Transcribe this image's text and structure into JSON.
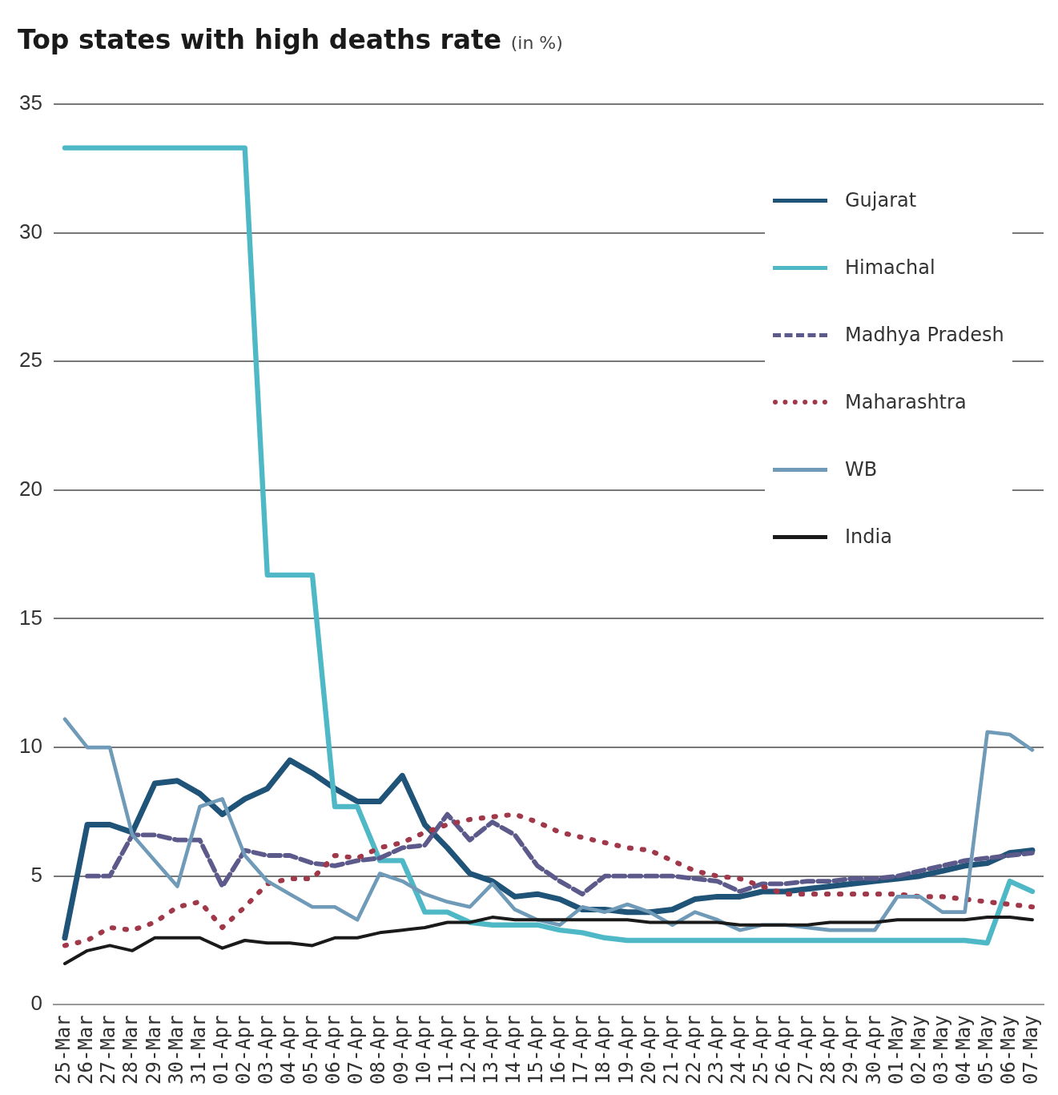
{
  "chart_data": {
    "type": "line",
    "title": "Top states with high deaths rate",
    "subtitle": "(in %)",
    "categories": [
      "25-Mar",
      "26-Mar",
      "27-Mar",
      "28-Mar",
      "29-Mar",
      "30-Mar",
      "31-Mar",
      "01-Apr",
      "02-Apr",
      "03-Apr",
      "04-Apr",
      "05-Apr",
      "06-Apr",
      "07-Apr",
      "08-Apr",
      "09-Apr",
      "10-Apr",
      "11-Apr",
      "12-Apr",
      "13-Apr",
      "14-Apr",
      "15-Apr",
      "16-Apr",
      "17-Apr",
      "18-Apr",
      "19-Apr",
      "20-Apr",
      "21-Apr",
      "22-Apr",
      "23-Apr",
      "24-Apr",
      "25-Apr",
      "26-Apr",
      "27-Apr",
      "28-Apr",
      "29-Apr",
      "30-Apr",
      "01-May",
      "02-May",
      "03-May",
      "04-May",
      "05-May",
      "06-May",
      "07-May"
    ],
    "series": [
      {
        "name": "Gujarat",
        "color": "#1f5478",
        "line_style": "solid",
        "values": [
          2.6,
          7.0,
          7.0,
          6.7,
          8.6,
          8.7,
          8.2,
          7.4,
          8.0,
          8.4,
          9.5,
          9.0,
          8.4,
          7.9,
          7.9,
          8.9,
          7.0,
          6.1,
          5.1,
          4.8,
          4.2,
          4.3,
          4.1,
          3.7,
          3.7,
          3.6,
          3.6,
          3.7,
          4.1,
          4.2,
          4.2,
          4.4,
          4.4,
          4.5,
          4.6,
          4.7,
          4.8,
          4.9,
          5.0,
          5.2,
          5.4,
          5.5,
          5.9,
          6.0
        ]
      },
      {
        "name": "Himachal",
        "color": "#4fb8c6",
        "line_style": "solid",
        "values": [
          33.3,
          33.3,
          33.3,
          33.3,
          33.3,
          33.3,
          33.3,
          33.3,
          33.3,
          16.7,
          16.7,
          16.7,
          7.7,
          7.7,
          5.6,
          5.6,
          3.6,
          3.6,
          3.2,
          3.1,
          3.1,
          3.1,
          2.9,
          2.8,
          2.6,
          2.5,
          2.5,
          2.5,
          2.5,
          2.5,
          2.5,
          2.5,
          2.5,
          2.5,
          2.5,
          2.5,
          2.5,
          2.5,
          2.5,
          2.5,
          2.5,
          2.4,
          4.8,
          4.4
        ]
      },
      {
        "name": "Madhya Pradesh",
        "color": "#5c5a8a",
        "line_style": "dashed",
        "values": [
          null,
          5.0,
          5.0,
          6.6,
          6.6,
          6.4,
          6.4,
          4.6,
          6.0,
          5.8,
          5.8,
          5.5,
          5.4,
          5.6,
          5.7,
          6.1,
          6.2,
          7.4,
          6.4,
          7.1,
          6.6,
          5.4,
          4.8,
          4.3,
          5.0,
          5.0,
          5.0,
          5.0,
          4.9,
          4.8,
          4.4,
          4.7,
          4.7,
          4.8,
          4.8,
          4.9,
          4.9,
          5.0,
          5.2,
          5.4,
          5.6,
          5.7,
          5.8,
          5.9
        ]
      },
      {
        "name": "Maharashtra",
        "color": "#a0384a",
        "line_style": "dotted",
        "values": [
          2.3,
          2.5,
          3.0,
          2.9,
          3.2,
          3.8,
          4.0,
          3.0,
          3.8,
          4.7,
          4.9,
          4.9,
          5.8,
          5.7,
          6.1,
          6.3,
          6.7,
          7.0,
          7.2,
          7.3,
          7.4,
          7.1,
          6.7,
          6.5,
          6.3,
          6.1,
          6.0,
          5.6,
          5.2,
          5.0,
          4.9,
          4.6,
          4.3,
          4.3,
          4.3,
          4.3,
          4.3,
          4.3,
          4.2,
          4.2,
          4.1,
          4.0,
          3.9,
          3.8
        ]
      },
      {
        "name": "WB",
        "color": "#6f9bb8",
        "line_style": "solid",
        "values": [
          11.1,
          10.0,
          10.0,
          6.6,
          5.6,
          4.6,
          7.7,
          8.0,
          5.8,
          4.8,
          4.3,
          3.8,
          3.8,
          3.3,
          5.1,
          4.8,
          4.3,
          4.0,
          3.8,
          4.7,
          3.7,
          3.3,
          3.1,
          3.8,
          3.6,
          3.9,
          3.6,
          3.1,
          3.6,
          3.3,
          2.9,
          3.1,
          3.1,
          3.0,
          2.9,
          2.9,
          2.9,
          4.2,
          4.2,
          3.6,
          3.6,
          10.6,
          10.5,
          9.9
        ]
      },
      {
        "name": "India",
        "color": "#1a1a1a",
        "line_style": "solid",
        "values": [
          1.6,
          2.1,
          2.3,
          2.1,
          2.6,
          2.6,
          2.6,
          2.2,
          2.5,
          2.4,
          2.4,
          2.3,
          2.6,
          2.6,
          2.8,
          2.9,
          3.0,
          3.2,
          3.2,
          3.4,
          3.3,
          3.3,
          3.3,
          3.3,
          3.3,
          3.3,
          3.2,
          3.2,
          3.2,
          3.2,
          3.1,
          3.1,
          3.1,
          3.1,
          3.2,
          3.2,
          3.2,
          3.3,
          3.3,
          3.3,
          3.3,
          3.4,
          3.4,
          3.3
        ]
      }
    ],
    "ylim": [
      0,
      35
    ],
    "yticks": [
      0,
      5,
      10,
      15,
      20,
      25,
      30,
      35
    ],
    "grid": "y",
    "legend": "top right",
    "marker": "none"
  }
}
